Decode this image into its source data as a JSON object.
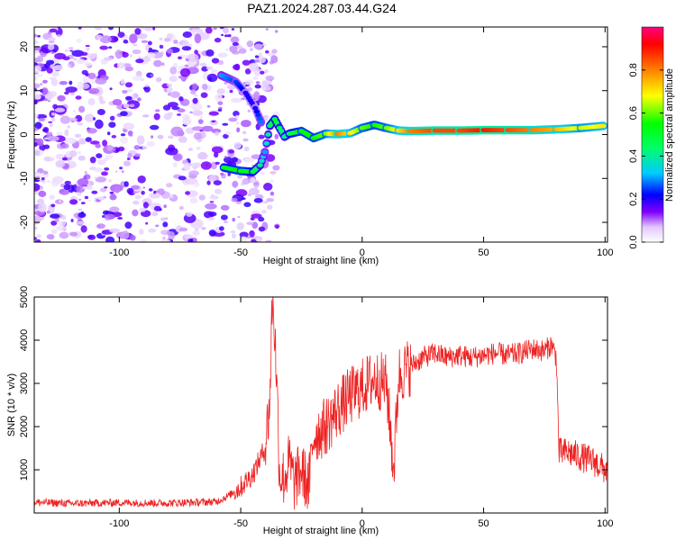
{
  "title": "PAZ1.2024.287.03.44.G24",
  "chart_data": [
    {
      "type": "heatmap",
      "xlabel": "Height of straight line (km)",
      "ylabel": "Frequency (Hz)",
      "xlim": [
        -135,
        101
      ],
      "ylim": [
        -24.5,
        24.5
      ],
      "xticks": [
        -100,
        -50,
        0,
        50,
        100
      ],
      "yticks": [
        -20,
        -10,
        0,
        10,
        20
      ],
      "colorbar": {
        "label": "Normalized spectral amplitude",
        "range": [
          0,
          1
        ],
        "ticks": [
          0.0,
          0.2,
          0.4,
          0.6,
          0.8
        ],
        "colors": [
          "#ffffff",
          "#d8b8ff",
          "#8000ff",
          "#0000ff",
          "#00ccff",
          "#00ff00",
          "#ffff00",
          "#ff8000",
          "#ff0000",
          "#ff0080"
        ]
      },
      "ridge": {
        "name": "",
        "x": [
          -57,
          -50,
          -45,
          -42,
          -40,
          -38,
          -36,
          -34,
          -32,
          -30,
          -25,
          -20,
          -15,
          -10,
          -5,
          0,
          5,
          10,
          15,
          20,
          30,
          40,
          50,
          60,
          70,
          80,
          90,
          100
        ],
        "frequency": [
          -7.5,
          -8.3,
          -8.5,
          -7,
          -4,
          2,
          3.5,
          1.5,
          -0.5,
          0.2,
          0.8,
          -0.8,
          0.2,
          0.1,
          0.3,
          1.5,
          2.2,
          1.5,
          0.9,
          0.8,
          0.9,
          0.9,
          1,
          1,
          1,
          1.2,
          1.5,
          2
        ],
        "amplitude": [
          0.5,
          0.55,
          0.5,
          0.4,
          0.3,
          0.45,
          0.5,
          0.45,
          0.4,
          0.45,
          0.55,
          0.55,
          0.6,
          0.8,
          0.7,
          0.6,
          0.55,
          0.6,
          0.7,
          0.8,
          0.85,
          0.85,
          0.9,
          0.85,
          0.8,
          0.75,
          0.65,
          0.7
        ]
      },
      "upper_branch": {
        "x": [
          -58,
          -52,
          -48,
          -44,
          -41
        ],
        "frequency": [
          13.5,
          12,
          9.5,
          6,
          2
        ],
        "amplitude": [
          0.3,
          0.25,
          0.2,
          0.2,
          0.3
        ]
      }
    },
    {
      "type": "line",
      "xlabel": "Height of straight line (km)",
      "ylabel": "SNR (10 * v/v)",
      "xlim": [
        -135,
        101
      ],
      "ylim": [
        0,
        5000
      ],
      "xticks": [
        -100,
        -50,
        0,
        50,
        100
      ],
      "yticks": [
        1000,
        2000,
        3000,
        4000,
        5000
      ],
      "color": "#ee2222",
      "x": [
        -135,
        -120,
        -100,
        -80,
        -60,
        -55,
        -50,
        -45,
        -40,
        -38,
        -37,
        -36,
        -35,
        -34,
        -32,
        -30,
        -28,
        -25,
        -22,
        -20,
        -15,
        -10,
        -5,
        0,
        5,
        10,
        13,
        15,
        20,
        25,
        30,
        35,
        40,
        45,
        50,
        55,
        60,
        65,
        70,
        75,
        78,
        80,
        81,
        85,
        90,
        95,
        100
      ],
      "values": [
        250,
        220,
        240,
        230,
        260,
        400,
        600,
        900,
        1500,
        2600,
        5000,
        4200,
        2800,
        900,
        800,
        1200,
        700,
        1000,
        600,
        1800,
        2000,
        2400,
        2700,
        2900,
        3100,
        3000,
        1000,
        3200,
        3400,
        3600,
        3700,
        3600,
        3650,
        3600,
        3650,
        3700,
        3650,
        3700,
        3800,
        3750,
        3900,
        3600,
        1400,
        1400,
        1300,
        1200,
        1000
      ]
    }
  ]
}
